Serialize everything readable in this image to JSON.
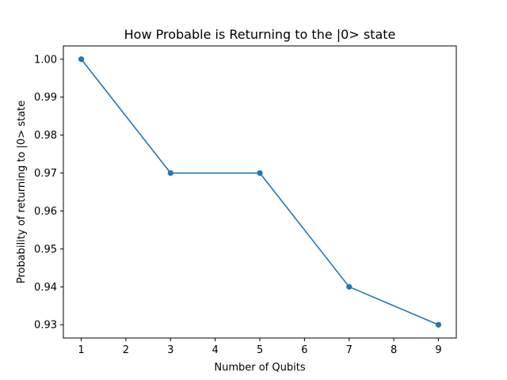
{
  "chart_data": {
    "type": "line",
    "title": "How Probable is Returning to the |0> state",
    "xlabel": "Number of Qubits",
    "ylabel": "Probability of returning to |0> state",
    "x": [
      1,
      3,
      5,
      7,
      9
    ],
    "y": [
      1.0,
      0.97,
      0.97,
      0.94,
      0.93
    ],
    "xlim": [
      0.6,
      9.4
    ],
    "ylim": [
      0.9265,
      1.0035
    ],
    "xticks": [
      1,
      2,
      3,
      4,
      5,
      6,
      7,
      8,
      9
    ],
    "xtick_labels": [
      "1",
      "2",
      "3",
      "4",
      "5",
      "6",
      "7",
      "8",
      "9"
    ],
    "yticks": [
      0.93,
      0.94,
      0.95,
      0.96,
      0.97,
      0.98,
      0.99,
      1.0
    ],
    "ytick_labels": [
      "0.93",
      "0.94",
      "0.95",
      "0.96",
      "0.97",
      "0.98",
      "0.99",
      "1.00"
    ],
    "grid": false,
    "marker": "circle",
    "line_color": "#1f77b4"
  }
}
